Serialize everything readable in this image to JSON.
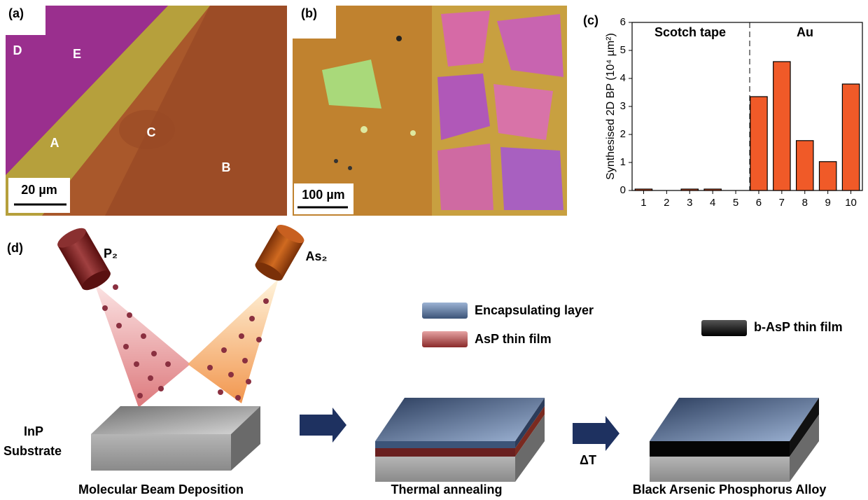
{
  "panel_labels": [
    "(a)",
    "(b)",
    "(c)",
    "(d)"
  ],
  "micrograph_a": {
    "region_labels": [
      "D",
      "E",
      "A",
      "C",
      "B"
    ],
    "scale_bar": "20 µm"
  },
  "micrograph_b": {
    "scale_bar": "100 µm"
  },
  "chart_data": {
    "type": "bar",
    "ylabel": "Synthesised 2D BP (10⁴ µm²)",
    "categories": [
      "1",
      "2",
      "3",
      "4",
      "5",
      "6",
      "7",
      "8",
      "9",
      "10"
    ],
    "values": [
      0.05,
      0,
      0.05,
      0.05,
      0,
      3.35,
      4.6,
      1.78,
      1.03,
      3.8
    ],
    "color": "#f05a28",
    "ylim": [
      0,
      6
    ],
    "yticks": [
      0,
      1,
      2,
      3,
      4,
      5,
      6
    ],
    "annotations": [
      "Scotch tape",
      "Au"
    ]
  },
  "diagram": {
    "sources": [
      "P₂",
      "As₂"
    ],
    "legend": [
      "Encapsulating layer",
      "AsP thin film",
      "b-AsP thin film"
    ],
    "substrate": [
      "InP",
      "Substrate"
    ],
    "heat": "ΔT",
    "steps": [
      "Molecular Beam Deposition",
      "Thermal annealing",
      "Black Arsenic Phosphorus Alloy"
    ]
  }
}
